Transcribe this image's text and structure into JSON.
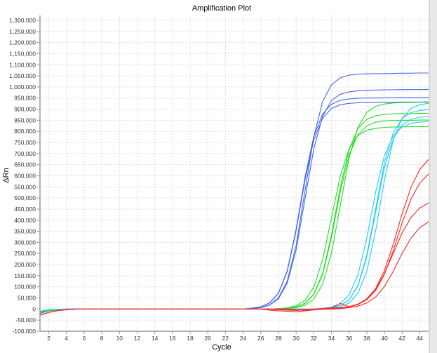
{
  "chart_data": {
    "type": "line",
    "title": "Amplification Plot",
    "xlabel": "Cycle",
    "ylabel": "ΔRn",
    "xlim": [
      1,
      45
    ],
    "ylim": [
      -100000,
      1322000
    ],
    "grid": true,
    "legend": "none",
    "x_ticks": [
      2,
      4,
      6,
      8,
      10,
      12,
      14,
      16,
      18,
      20,
      22,
      24,
      26,
      28,
      30,
      32,
      34,
      36,
      38,
      40,
      42,
      44
    ],
    "y_ticks": [
      -100000,
      -50000,
      0,
      50000,
      100000,
      150000,
      200000,
      250000,
      300000,
      350000,
      400000,
      450000,
      500000,
      550000,
      600000,
      650000,
      700000,
      750000,
      800000,
      850000,
      900000,
      950000,
      1000000,
      1050000,
      1100000,
      1150000,
      1200000,
      1250000,
      1300000
    ],
    "y_tick_labels": [
      "-100,000",
      "-50,000",
      "0",
      "50,000",
      "100,000",
      "150,000",
      "200,000",
      "250,000",
      "300,000",
      "350,000",
      "400,000",
      "450,000",
      "500,000",
      "550,000",
      "600,000",
      "650,000",
      "700,000",
      "750,000",
      "800,000",
      "850,000",
      "900,000",
      "950,000",
      "1,000,000",
      "1,050,000",
      "1,100,000",
      "1,150,000",
      "1,200,000",
      "1,250,000",
      "1,300,000"
    ],
    "x": [
      1,
      2,
      3,
      4,
      5,
      6,
      7,
      8,
      9,
      10,
      11,
      12,
      13,
      14,
      15,
      16,
      17,
      18,
      19,
      20,
      21,
      22,
      23,
      24,
      25,
      26,
      27,
      28,
      29,
      30,
      31,
      32,
      33,
      34,
      35,
      36,
      37,
      38,
      39,
      40,
      41,
      42,
      43,
      44,
      45
    ],
    "series": [
      {
        "name": "blue-1",
        "color": "#4466ee",
        "values": [
          -15000,
          -6000,
          -2000,
          0,
          0,
          0,
          0,
          0,
          0,
          0,
          0,
          0,
          0,
          0,
          0,
          0,
          0,
          0,
          0,
          0,
          0,
          0,
          0,
          0,
          2600,
          7100,
          19000,
          50000,
          126000,
          285000,
          530000,
          775000,
          934000,
          1010000,
          1041000,
          1053000,
          1058000,
          1059000,
          1060000,
          1060000,
          1061000,
          1062000,
          1062000,
          1063000,
          1063000
        ]
      },
      {
        "name": "blue-2",
        "color": "#4466ee",
        "values": [
          -15000,
          -6000,
          -2000,
          0,
          0,
          0,
          0,
          0,
          0,
          0,
          0,
          0,
          0,
          0,
          0,
          0,
          0,
          0,
          0,
          0,
          0,
          0,
          0,
          0,
          2500,
          6600,
          18000,
          46000,
          117000,
          265000,
          493000,
          720000,
          868000,
          939000,
          967000,
          978000,
          983000,
          985000,
          986000,
          987000,
          987000,
          988000,
          988000,
          988000,
          989000
        ]
      },
      {
        "name": "blue-3",
        "color": "#4466ee",
        "values": [
          -15000,
          -6000,
          -2000,
          0,
          0,
          0,
          0,
          0,
          0,
          0,
          0,
          0,
          0,
          0,
          0,
          0,
          0,
          0,
          0,
          0,
          0,
          0,
          0,
          0,
          3900,
          10000,
          28000,
          72000,
          173000,
          359000,
          591000,
          777000,
          878000,
          922000,
          940000,
          946000,
          949000,
          950000,
          950000,
          951000,
          951000,
          952000,
          952000,
          952000,
          953000
        ]
      },
      {
        "name": "blue-4",
        "color": "#4466ee",
        "values": [
          -15000,
          -6000,
          -2000,
          0,
          0,
          0,
          0,
          0,
          0,
          0,
          0,
          0,
          0,
          0,
          0,
          0,
          0,
          0,
          0,
          0,
          0,
          0,
          0,
          0,
          3800,
          10000,
          27000,
          71000,
          169000,
          352000,
          578000,
          761000,
          859000,
          903000,
          920000,
          926000,
          929000,
          930000,
          930000,
          931000,
          931000,
          932000,
          932000,
          932000,
          933000
        ]
      },
      {
        "name": "green-1",
        "color": "#22dd22",
        "values": [
          -20000,
          -8000,
          -3000,
          -1000,
          0,
          0,
          0,
          0,
          0,
          0,
          0,
          0,
          0,
          0,
          0,
          0,
          0,
          0,
          0,
          0,
          0,
          0,
          0,
          0,
          0,
          0,
          0,
          1000,
          2300,
          6200,
          17000,
          44000,
          111000,
          250000,
          465000,
          680000,
          819000,
          886000,
          913000,
          923000,
          928000,
          930000,
          930000,
          931000,
          931000
        ]
      },
      {
        "name": "green-2",
        "color": "#22dd22",
        "values": [
          -20000,
          -8000,
          -3000,
          -1000,
          0,
          0,
          0,
          0,
          0,
          0,
          0,
          0,
          0,
          0,
          0,
          0,
          0,
          0,
          0,
          0,
          0,
          0,
          0,
          0,
          0,
          0,
          0,
          1500,
          3600,
          9700,
          26000,
          67000,
          160000,
          333000,
          547000,
          720000,
          813000,
          854000,
          870000,
          876000,
          879000,
          880000,
          880000,
          881000,
          881000
        ]
      },
      {
        "name": "green-3",
        "color": "#22dd22",
        "values": [
          -20000,
          -8000,
          -3000,
          -1000,
          0,
          0,
          0,
          0,
          0,
          0,
          0,
          0,
          0,
          0,
          0,
          0,
          0,
          0,
          0,
          0,
          0,
          0,
          0,
          0,
          0,
          0,
          0,
          1400,
          3500,
          9400,
          25000,
          65000,
          155000,
          321000,
          529000,
          695000,
          785000,
          825000,
          841000,
          847000,
          849000,
          850000,
          850000,
          851000,
          851000
        ]
      },
      {
        "name": "green-4",
        "color": "#22dd22",
        "values": [
          -20000,
          -8000,
          -3000,
          -1000,
          0,
          0,
          0,
          0,
          0,
          0,
          0,
          0,
          0,
          0,
          0,
          0,
          0,
          0,
          0,
          0,
          0,
          0,
          0,
          0,
          0,
          0,
          0,
          2000,
          5500,
          15000,
          39000,
          98000,
          221000,
          410000,
          599000,
          722000,
          781000,
          805000,
          814000,
          818000,
          820000,
          820000,
          821000,
          821000,
          821000
        ]
      },
      {
        "name": "cyan-1",
        "color": "#22ccf5",
        "values": [
          -10000,
          -4000,
          -1000,
          0,
          0,
          0,
          0,
          0,
          0,
          0,
          0,
          0,
          0,
          0,
          0,
          0,
          0,
          0,
          0,
          0,
          0,
          0,
          0,
          0,
          0,
          0,
          0,
          0,
          0,
          0,
          0,
          0,
          1500,
          3800,
          10000,
          27000,
          71000,
          169000,
          352000,
          578000,
          761000,
          859000,
          903000,
          920000,
          926000
        ]
      },
      {
        "name": "cyan-2",
        "color": "#22ccf5",
        "values": [
          -10000,
          -4000,
          -1000,
          0,
          0,
          0,
          0,
          0,
          0,
          0,
          0,
          0,
          0,
          0,
          0,
          0,
          0,
          0,
          0,
          0,
          0,
          0,
          0,
          0,
          0,
          0,
          0,
          0,
          0,
          0,
          0,
          0,
          2200,
          6000,
          16000,
          42000,
          107000,
          242000,
          450000,
          658000,
          793000,
          858000,
          884000,
          894000,
          898000
        ]
      },
      {
        "name": "cyan-3",
        "color": "#22ccf5",
        "values": [
          -10000,
          -4000,
          -1000,
          0,
          0,
          0,
          0,
          0,
          0,
          0,
          0,
          0,
          0,
          0,
          0,
          0,
          0,
          0,
          0,
          0,
          0,
          0,
          0,
          0,
          0,
          0,
          0,
          0,
          0,
          0,
          0,
          0,
          2100,
          5800,
          16000,
          41000,
          104000,
          234000,
          435000,
          636000,
          766000,
          829000,
          854000,
          864000,
          868000
        ]
      },
      {
        "name": "cyan-4",
        "color": "#22ccf5",
        "values": [
          -10000,
          -4000,
          -1000,
          0,
          0,
          0,
          0,
          0,
          0,
          0,
          0,
          0,
          0,
          0,
          0,
          0,
          0,
          0,
          0,
          0,
          0,
          0,
          0,
          0,
          0,
          0,
          0,
          0,
          0,
          0,
          0,
          0,
          3500,
          9300,
          25000,
          64000,
          154000,
          319000,
          526000,
          691000,
          780000,
          820000,
          836000,
          842000,
          844000
        ]
      },
      {
        "name": "red-1",
        "color": "#ff2222",
        "values": [
          -28000,
          -15000,
          -7000,
          -3000,
          0,
          0,
          0,
          0,
          0,
          0,
          0,
          0,
          0,
          0,
          0,
          0,
          0,
          0,
          0,
          0,
          0,
          0,
          0,
          0,
          0,
          0,
          0,
          0,
          0,
          -3000,
          -2000,
          0,
          2000,
          5000,
          25000,
          10000,
          22000,
          46000,
          92000,
          173000,
          292000,
          428000,
          547000,
          628000,
          674000
        ]
      },
      {
        "name": "red-2",
        "color": "#ff2222",
        "values": [
          -28000,
          -15000,
          -7000,
          -3000,
          0,
          0,
          0,
          0,
          0,
          0,
          0,
          0,
          0,
          0,
          0,
          0,
          0,
          0,
          0,
          0,
          0,
          0,
          0,
          0,
          0,
          0,
          -5000,
          -8000,
          -10000,
          -12000,
          -8000,
          -4000,
          0,
          2000,
          5000,
          9000,
          20000,
          42000,
          83000,
          156000,
          263000,
          387000,
          494000,
          567000,
          608000
        ]
      },
      {
        "name": "red-3",
        "color": "#ff2222",
        "values": [
          -28000,
          -15000,
          -7000,
          -3000,
          0,
          0,
          0,
          0,
          0,
          0,
          0,
          0,
          0,
          0,
          0,
          0,
          0,
          0,
          0,
          0,
          0,
          0,
          0,
          0,
          0,
          0,
          0,
          -3000,
          -5000,
          -6000,
          -4000,
          -2000,
          0,
          3000,
          6000,
          11000,
          22000,
          45000,
          89000,
          159000,
          250000,
          342000,
          412000,
          455000,
          478000
        ]
      },
      {
        "name": "red-4",
        "color": "#ff2222",
        "values": [
          -28000,
          -15000,
          -7000,
          -3000,
          0,
          0,
          0,
          0,
          0,
          0,
          0,
          0,
          0,
          0,
          0,
          0,
          0,
          0,
          0,
          0,
          0,
          0,
          0,
          0,
          0,
          0,
          0,
          0,
          -2000,
          -4000,
          -5000,
          -3000,
          -1000,
          0,
          2000,
          6000,
          13000,
          27000,
          54000,
          101000,
          170000,
          250000,
          319000,
          366000,
          393000
        ]
      }
    ]
  }
}
